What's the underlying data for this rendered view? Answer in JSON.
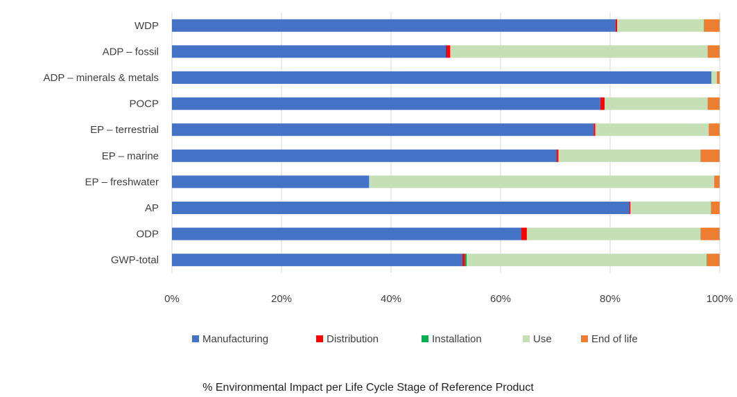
{
  "chart_data": {
    "type": "bar",
    "orientation": "horizontal",
    "stacked": true,
    "percent_stacked": true,
    "title": "% Environmental Impact per Life Cycle Stage of Reference Product",
    "categories": [
      "WDP",
      "ADP – fossil",
      "ADP – minerals  & metals",
      "POCP",
      "EP – terrestrial",
      "EP – marine",
      "EP – freshwater",
      "AP",
      "ODP",
      "GWP-total"
    ],
    "series": [
      {
        "name": "Manufacturing",
        "color": "#4472C4",
        "values": [
          81.0,
          50.0,
          98.5,
          78.2,
          77.0,
          70.2,
          36.0,
          83.5,
          63.8,
          53.0
        ]
      },
      {
        "name": "Distribution",
        "color": "#FF0000",
        "values": [
          0.3,
          0.8,
          0.0,
          0.8,
          0.3,
          0.3,
          0.0,
          0.2,
          1.0,
          0.5
        ]
      },
      {
        "name": "Installation",
        "color": "#00B050",
        "values": [
          0.0,
          0.0,
          0.0,
          0.0,
          0.0,
          0.1,
          0.0,
          0.0,
          0.0,
          0.3
        ]
      },
      {
        "name": "Use",
        "color": "#C5E0B4",
        "values": [
          15.8,
          47.0,
          1.0,
          18.8,
          20.7,
          25.9,
          63.0,
          14.7,
          31.7,
          43.8
        ]
      },
      {
        "name": "End of life",
        "color": "#ED7D31",
        "values": [
          2.9,
          2.2,
          0.5,
          2.2,
          2.0,
          3.5,
          1.0,
          1.6,
          3.5,
          2.4
        ]
      }
    ],
    "x_ticks": [
      "0%",
      "20%",
      "40%",
      "60%",
      "80%",
      "100%"
    ],
    "xlim": [
      0,
      100
    ],
    "grid": true,
    "legend_position": "bottom"
  }
}
